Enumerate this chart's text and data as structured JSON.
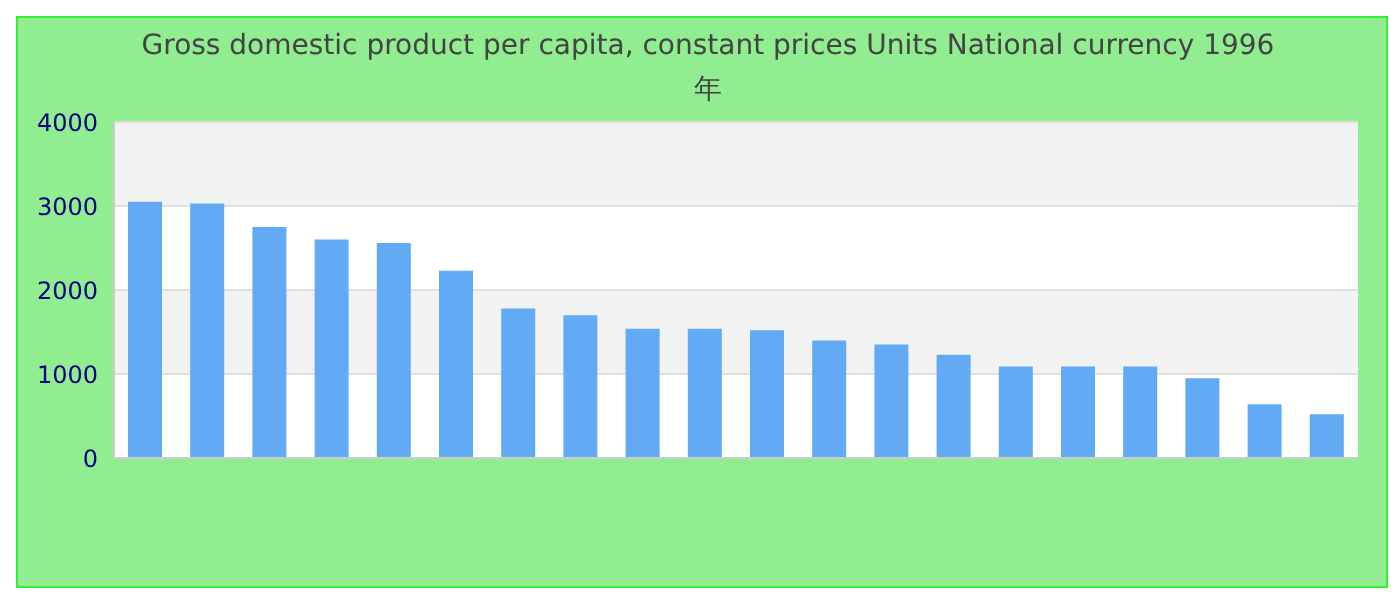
{
  "chart_data": {
    "type": "bar",
    "title": "Gross domestic product per capita, constant prices Units National currency 1996年",
    "categories": [
      null,
      null,
      null,
      null,
      null,
      null,
      null,
      null,
      null,
      null,
      null,
      null,
      null,
      null,
      null,
      null,
      null,
      null,
      null,
      null
    ],
    "values": [
      3050,
      3030,
      2750,
      2600,
      2560,
      2230,
      1780,
      1700,
      1540,
      1540,
      1520,
      1400,
      1350,
      1230,
      1090,
      1090,
      1090,
      950,
      640,
      520
    ],
    "color": "#62aaf4",
    "ylim": [
      0,
      4000
    ],
    "yticks": [
      0,
      1000,
      2000,
      3000,
      4000
    ],
    "grid": "y"
  }
}
